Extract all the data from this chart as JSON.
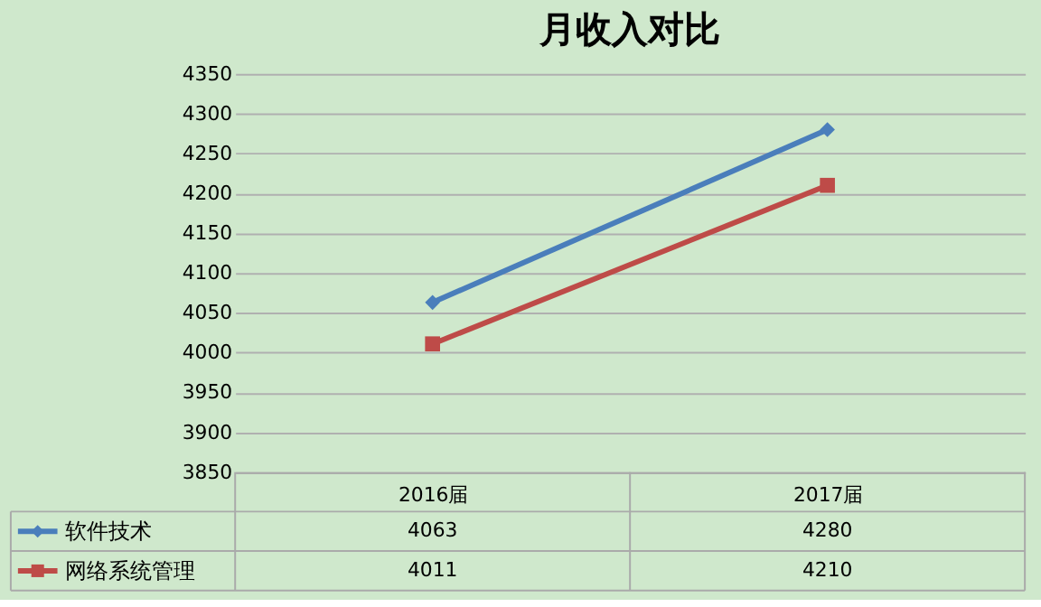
{
  "chart_data": {
    "type": "line",
    "title": "月收入对比",
    "categories": [
      "2016届",
      "2017届"
    ],
    "series": [
      {
        "name": "软件技术",
        "color": "#4a7ebb",
        "marker": "diamond",
        "values": [
          4063,
          4280
        ]
      },
      {
        "name": "网络系统管理",
        "color": "#be4b48",
        "marker": "square",
        "values": [
          4011,
          4210
        ]
      }
    ],
    "ylim": [
      3850,
      4350
    ],
    "yticks": [
      3850,
      3900,
      3950,
      4000,
      4050,
      4100,
      4150,
      4200,
      4250,
      4300,
      4350
    ],
    "grid": "y",
    "data_labels": true,
    "legend": "bottom"
  }
}
